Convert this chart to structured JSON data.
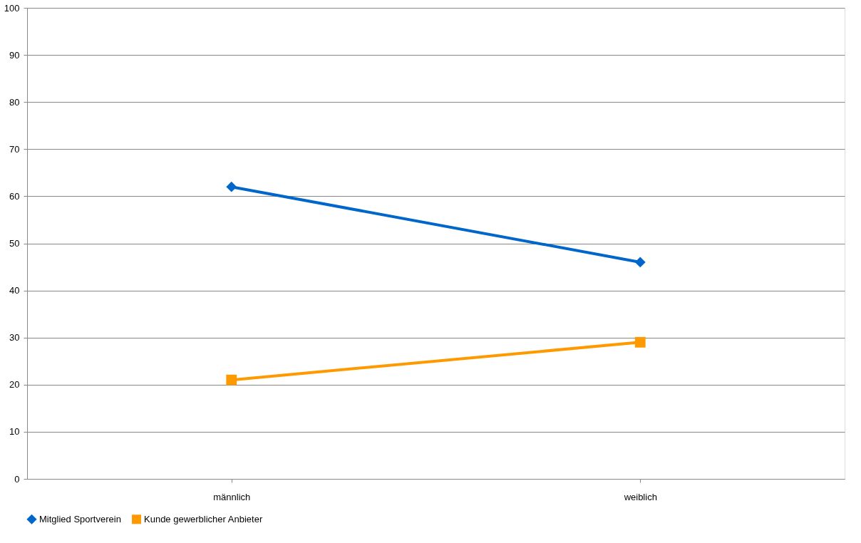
{
  "chart_data": {
    "type": "line",
    "categories": [
      "männlich",
      "weiblich"
    ],
    "series": [
      {
        "name": "Mitglied Sportverein",
        "color": "#0066cc",
        "values": [
          62,
          46
        ],
        "marker": "diamond"
      },
      {
        "name": "Kunde gewerblicher Anbieter",
        "color": "#ff9900",
        "values": [
          21,
          29
        ],
        "marker": "square"
      }
    ],
    "ylim": [
      0,
      100
    ],
    "yticks": [
      0,
      10,
      20,
      30,
      40,
      50,
      60,
      70,
      80,
      90,
      100
    ],
    "grid": "y",
    "legend": "bottom"
  }
}
